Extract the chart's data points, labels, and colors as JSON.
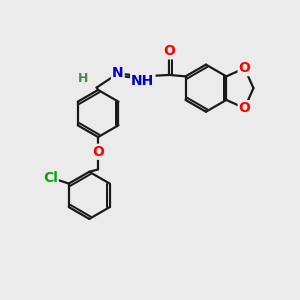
{
  "bg_color": "#ebebeb",
  "bond_color": "#1a1a1a",
  "bond_width": 1.6,
  "atom_colors": {
    "O": "#ff0000",
    "N": "#0000cc",
    "Cl": "#00aa00",
    "H": "#4a8a4a",
    "C": "#1a1a1a"
  },
  "font_size": 10,
  "fig_size": [
    3.0,
    3.0
  ],
  "dpi": 100
}
